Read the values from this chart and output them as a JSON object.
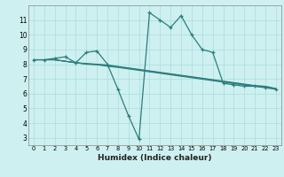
{
  "bg_color": "#cef0f0",
  "grid_color": "#aadddd",
  "line_color": "#2d7d7d",
  "xlabel": "Humidex (Indice chaleur)",
  "xlim": [
    -0.5,
    23.5
  ],
  "ylim": [
    2.5,
    12.0
  ],
  "yticks": [
    3,
    4,
    5,
    6,
    7,
    8,
    9,
    10,
    11
  ],
  "xticks": [
    0,
    1,
    2,
    3,
    4,
    5,
    6,
    7,
    8,
    9,
    10,
    11,
    12,
    13,
    14,
    15,
    16,
    17,
    18,
    19,
    20,
    21,
    22,
    23
  ],
  "series": [
    {
      "x": [
        0,
        1,
        2,
        3,
        4,
        5,
        6,
        7,
        8,
        9,
        10,
        11,
        12,
        13,
        14,
        15,
        16,
        17,
        18,
        19,
        20,
        21,
        22,
        23
      ],
      "y": [
        8.3,
        8.3,
        8.4,
        8.5,
        8.1,
        8.8,
        8.9,
        8.0,
        6.3,
        4.5,
        2.9,
        11.5,
        11.0,
        10.5,
        11.3,
        10.0,
        9.0,
        8.8,
        6.7,
        6.6,
        6.5,
        6.5,
        6.4,
        6.3
      ],
      "marker": true
    },
    {
      "x": [
        0,
        1,
        2,
        3,
        4,
        5,
        6,
        7,
        8,
        9,
        10,
        11,
        12,
        13,
        14,
        15,
        16,
        17,
        18,
        19,
        20,
        21,
        22,
        23
      ],
      "y": [
        8.3,
        8.3,
        8.3,
        8.2,
        8.1,
        8.05,
        8.0,
        7.95,
        7.85,
        7.75,
        7.65,
        7.55,
        7.45,
        7.35,
        7.25,
        7.15,
        7.05,
        6.95,
        6.85,
        6.75,
        6.65,
        6.55,
        6.5,
        6.35
      ],
      "marker": false
    },
    {
      "x": [
        0,
        1,
        2,
        3,
        4,
        5,
        6,
        7,
        8,
        9,
        10,
        11,
        12,
        13,
        14,
        15,
        16,
        17,
        18,
        19,
        20,
        21,
        22,
        23
      ],
      "y": [
        8.3,
        8.3,
        8.3,
        8.2,
        8.1,
        8.02,
        7.98,
        7.9,
        7.82,
        7.72,
        7.62,
        7.52,
        7.42,
        7.32,
        7.22,
        7.12,
        7.02,
        6.92,
        6.82,
        6.72,
        6.62,
        6.52,
        6.48,
        6.32
      ],
      "marker": false
    },
    {
      "x": [
        0,
        1,
        2,
        3,
        4,
        5,
        6,
        7,
        8,
        9,
        10,
        11,
        12,
        13,
        14,
        15,
        16,
        17,
        18,
        19,
        20,
        21,
        22,
        23
      ],
      "y": [
        8.3,
        8.3,
        8.3,
        8.2,
        8.1,
        8.0,
        7.96,
        7.86,
        7.78,
        7.68,
        7.58,
        7.48,
        7.38,
        7.28,
        7.18,
        7.08,
        6.98,
        6.88,
        6.78,
        6.68,
        6.58,
        6.5,
        6.45,
        6.3
      ],
      "marker": false
    }
  ]
}
